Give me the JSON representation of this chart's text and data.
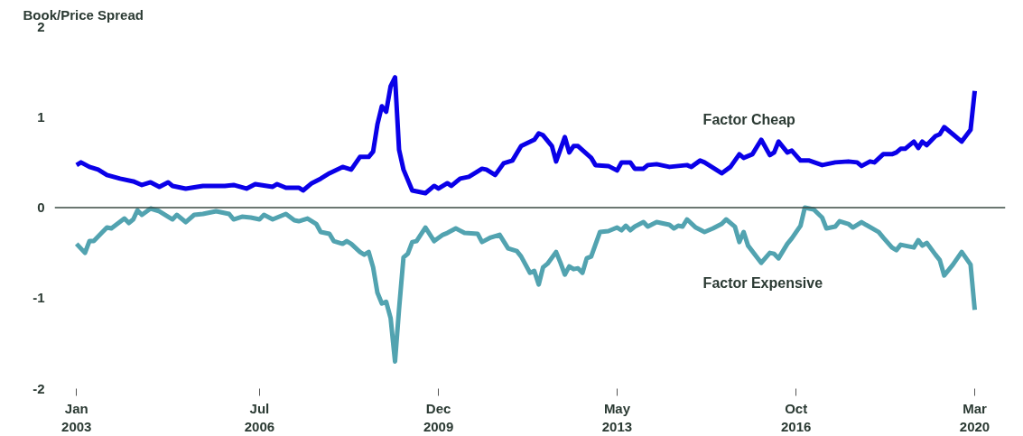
{
  "chart_data": {
    "type": "line",
    "ylabel": "Book/Price Spread",
    "xlim": [
      "2002-08",
      "2020-10"
    ],
    "xticks": [
      {
        "value": "2003-01",
        "label": "Jan\n2003"
      },
      {
        "value": "2006-07",
        "label": "Jul\n2006"
      },
      {
        "value": "2009-12",
        "label": "Dec\n2009"
      },
      {
        "value": "2013-05",
        "label": "May\n2013"
      },
      {
        "value": "2016-10",
        "label": "Oct\n2016"
      },
      {
        "value": "2020-03",
        "label": "Mar\n2020"
      }
    ],
    "ylim": [
      -2,
      2
    ],
    "yticks": [
      -2,
      -1,
      0,
      1,
      2
    ],
    "grid": false,
    "marker": "none",
    "line_style": "solid",
    "ref_lines": [
      {
        "axis": "y",
        "value": 0,
        "color": "#3a4a42"
      }
    ],
    "series": [
      {
        "name": "Factor Cheap",
        "color": "#0a00e8",
        "x": [
          "2003-01",
          "2003-02",
          "2003-04",
          "2003-06",
          "2003-08",
          "2003-11",
          "2004-02",
          "2004-04",
          "2004-06",
          "2004-08",
          "2004-10",
          "2004-11",
          "2005-02",
          "2005-06",
          "2005-11",
          "2006-01",
          "2006-04",
          "2006-06",
          "2006-10",
          "2006-11",
          "2007-01",
          "2007-04",
          "2007-05",
          "2007-07",
          "2007-09",
          "2007-11",
          "2008-02",
          "2008-04",
          "2008-06",
          "2008-08",
          "2008-09",
          "2008-10",
          "2008-11",
          "2008-12",
          "2009-01",
          "2009-02",
          "2009-03",
          "2009-04",
          "2009-06",
          "2009-09",
          "2009-11",
          "2009-12",
          "2010-02",
          "2010-03",
          "2010-05",
          "2010-07",
          "2010-09",
          "2010-10",
          "2010-11",
          "2011-01",
          "2011-03",
          "2011-05",
          "2011-07",
          "2011-10",
          "2011-11",
          "2011-12",
          "2012-02",
          "2012-03",
          "2012-05",
          "2012-06",
          "2012-07",
          "2012-08",
          "2012-11",
          "2012-12",
          "2013-03",
          "2013-05",
          "2013-06",
          "2013-08",
          "2013-09",
          "2013-11",
          "2013-12",
          "2014-02",
          "2014-05",
          "2014-09",
          "2014-10",
          "2014-12",
          "2015-01",
          "2015-05",
          "2015-07",
          "2015-09",
          "2015-10",
          "2015-12",
          "2016-02",
          "2016-04",
          "2016-05",
          "2016-06",
          "2016-08",
          "2016-09",
          "2016-11",
          "2017-01",
          "2017-04",
          "2017-07",
          "2017-10",
          "2017-12",
          "2018-01",
          "2018-03",
          "2018-04",
          "2018-06",
          "2018-08",
          "2018-09",
          "2018-10",
          "2018-11",
          "2019-01",
          "2019-02",
          "2019-03",
          "2019-04",
          "2019-06",
          "2019-07",
          "2019-08",
          "2019-10",
          "2019-12",
          "2020-02",
          "2020-03"
        ],
        "values": [
          0.47,
          0.5,
          0.45,
          0.42,
          0.36,
          0.32,
          0.29,
          0.25,
          0.28,
          0.23,
          0.28,
          0.24,
          0.21,
          0.24,
          0.24,
          0.25,
          0.21,
          0.26,
          0.23,
          0.26,
          0.22,
          0.22,
          0.19,
          0.27,
          0.32,
          0.38,
          0.45,
          0.42,
          0.56,
          0.56,
          0.62,
          0.92,
          1.12,
          1.06,
          1.34,
          1.44,
          0.64,
          0.42,
          0.19,
          0.16,
          0.24,
          0.21,
          0.27,
          0.24,
          0.32,
          0.34,
          0.4,
          0.43,
          0.42,
          0.36,
          0.49,
          0.52,
          0.68,
          0.75,
          0.82,
          0.8,
          0.68,
          0.51,
          0.78,
          0.61,
          0.68,
          0.68,
          0.55,
          0.47,
          0.46,
          0.41,
          0.5,
          0.5,
          0.43,
          0.43,
          0.47,
          0.48,
          0.45,
          0.47,
          0.45,
          0.52,
          0.5,
          0.38,
          0.45,
          0.59,
          0.55,
          0.59,
          0.75,
          0.58,
          0.61,
          0.73,
          0.61,
          0.63,
          0.52,
          0.52,
          0.47,
          0.5,
          0.51,
          0.5,
          0.46,
          0.51,
          0.5,
          0.59,
          0.59,
          0.61,
          0.65,
          0.65,
          0.73,
          0.66,
          0.73,
          0.69,
          0.79,
          0.81,
          0.89,
          0.81,
          0.73,
          0.86,
          1.29
        ]
      },
      {
        "name": "Factor Expensive",
        "color": "#52a3b0",
        "x": [
          "2003-01",
          "2003-03",
          "2003-04",
          "2003-05",
          "2003-07",
          "2003-08",
          "2003-09",
          "2003-12",
          "2004-01",
          "2004-02",
          "2004-03",
          "2004-04",
          "2004-06",
          "2004-08",
          "2004-10",
          "2004-11",
          "2004-12",
          "2005-02",
          "2005-04",
          "2005-06",
          "2005-09",
          "2005-12",
          "2006-01",
          "2006-03",
          "2006-05",
          "2006-07",
          "2006-08",
          "2006-10",
          "2007-01",
          "2007-03",
          "2007-04",
          "2007-06",
          "2007-08",
          "2007-09",
          "2007-11",
          "2007-12",
          "2008-02",
          "2008-03",
          "2008-04",
          "2008-06",
          "2008-07",
          "2008-08",
          "2008-09",
          "2008-10",
          "2008-11",
          "2008-12",
          "2009-01",
          "2009-02",
          "2009-03",
          "2009-04",
          "2009-05",
          "2009-06",
          "2009-07",
          "2009-09",
          "2009-11",
          "2010-01",
          "2010-02",
          "2010-04",
          "2010-06",
          "2010-09",
          "2010-10",
          "2010-12",
          "2011-02",
          "2011-04",
          "2011-06",
          "2011-07",
          "2011-09",
          "2011-10",
          "2011-11",
          "2011-12",
          "2012-01",
          "2012-03",
          "2012-04",
          "2012-05",
          "2012-06",
          "2012-07",
          "2012-08",
          "2012-09",
          "2012-10",
          "2012-11",
          "2013-01",
          "2013-03",
          "2013-05",
          "2013-06",
          "2013-07",
          "2013-08",
          "2013-09",
          "2013-11",
          "2013-12",
          "2014-02",
          "2014-05",
          "2014-06",
          "2014-07",
          "2014-08",
          "2014-09",
          "2014-11",
          "2015-01",
          "2015-03",
          "2015-05",
          "2015-06",
          "2015-08",
          "2015-09",
          "2015-10",
          "2015-11",
          "2016-02",
          "2016-04",
          "2016-05",
          "2016-06",
          "2016-08",
          "2016-09",
          "2016-11",
          "2016-12",
          "2017-02",
          "2017-04",
          "2017-05",
          "2017-07",
          "2017-08",
          "2017-10",
          "2017-11",
          "2018-01",
          "2018-02",
          "2018-05",
          "2018-06",
          "2018-08",
          "2018-09",
          "2018-10",
          "2019-01",
          "2019-02",
          "2019-03",
          "2019-04",
          "2019-06",
          "2019-07",
          "2019-08",
          "2019-10",
          "2019-12",
          "2020-02",
          "2020-03"
        ],
        "values": [
          -0.4,
          -0.5,
          -0.37,
          -0.37,
          -0.27,
          -0.22,
          -0.23,
          -0.12,
          -0.17,
          -0.13,
          -0.03,
          -0.08,
          -0.01,
          -0.04,
          -0.1,
          -0.13,
          -0.08,
          -0.16,
          -0.08,
          -0.07,
          -0.04,
          -0.07,
          -0.13,
          -0.1,
          -0.11,
          -0.13,
          -0.08,
          -0.13,
          -0.07,
          -0.14,
          -0.15,
          -0.12,
          -0.18,
          -0.27,
          -0.29,
          -0.37,
          -0.4,
          -0.37,
          -0.4,
          -0.49,
          -0.52,
          -0.49,
          -0.66,
          -0.94,
          -1.06,
          -1.04,
          -1.22,
          -1.7,
          -1.12,
          -0.55,
          -0.51,
          -0.38,
          -0.37,
          -0.22,
          -0.37,
          -0.3,
          -0.28,
          -0.23,
          -0.28,
          -0.29,
          -0.38,
          -0.33,
          -0.3,
          -0.45,
          -0.48,
          -0.54,
          -0.72,
          -0.7,
          -0.85,
          -0.66,
          -0.62,
          -0.49,
          -0.61,
          -0.74,
          -0.65,
          -0.68,
          -0.67,
          -0.72,
          -0.56,
          -0.54,
          -0.27,
          -0.26,
          -0.22,
          -0.25,
          -0.2,
          -0.25,
          -0.21,
          -0.16,
          -0.21,
          -0.16,
          -0.19,
          -0.23,
          -0.2,
          -0.21,
          -0.13,
          -0.22,
          -0.27,
          -0.23,
          -0.18,
          -0.13,
          -0.21,
          -0.38,
          -0.27,
          -0.42,
          -0.61,
          -0.5,
          -0.51,
          -0.56,
          -0.4,
          -0.34,
          -0.2,
          0.0,
          -0.02,
          -0.11,
          -0.23,
          -0.21,
          -0.15,
          -0.18,
          -0.22,
          -0.16,
          -0.19,
          -0.27,
          -0.33,
          -0.44,
          -0.47,
          -0.41,
          -0.44,
          -0.36,
          -0.42,
          -0.39,
          -0.52,
          -0.58,
          -0.75,
          -0.63,
          -0.49,
          -0.63,
          -1.13
        ]
      }
    ]
  }
}
